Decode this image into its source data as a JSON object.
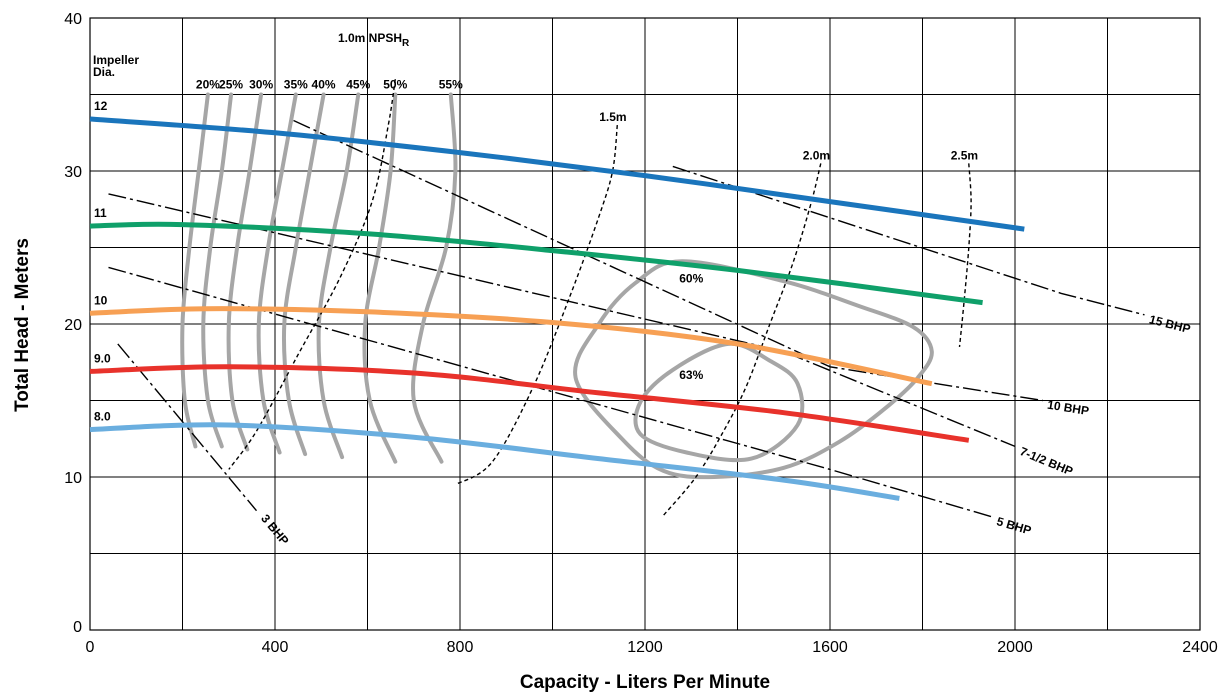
{
  "chart_data": {
    "type": "line",
    "title": "",
    "xlabel": "Capacity - Liters Per Minute",
    "ylabel": "Total Head - Meters",
    "xlim": [
      0,
      2400
    ],
    "ylim": [
      0,
      40
    ],
    "x_ticks": [
      "0",
      "400",
      "800",
      "1200",
      "1600",
      "2000",
      "2400"
    ],
    "y_ticks": [
      "0",
      "10",
      "20",
      "30",
      "40"
    ],
    "grid": true,
    "impeller_header": [
      "Impeller",
      "Dia."
    ],
    "series": [
      {
        "name": "12",
        "color": "#1a75bc",
        "points": [
          [
            0,
            33.4
          ],
          [
            400,
            32.5
          ],
          [
            800,
            31.2
          ],
          [
            1200,
            29.7
          ],
          [
            1600,
            28.0
          ],
          [
            2020,
            26.2
          ]
        ]
      },
      {
        "name": "11",
        "color": "#0fa06a",
        "points": [
          [
            0,
            26.4
          ],
          [
            200,
            26.5
          ],
          [
            600,
            25.9
          ],
          [
            1000,
            24.8
          ],
          [
            1400,
            23.5
          ],
          [
            1930,
            21.4
          ]
        ]
      },
      {
        "name": "10",
        "color": "#f7a054",
        "points": [
          [
            0,
            20.7
          ],
          [
            250,
            21.0
          ],
          [
            600,
            20.8
          ],
          [
            1000,
            20.1
          ],
          [
            1400,
            18.7
          ],
          [
            1820,
            16.1
          ]
        ]
      },
      {
        "name": "9.0",
        "color": "#e8322b",
        "points": [
          [
            0,
            16.9
          ],
          [
            300,
            17.2
          ],
          [
            700,
            16.8
          ],
          [
            1100,
            15.5
          ],
          [
            1500,
            14.2
          ],
          [
            1900,
            12.4
          ]
        ]
      },
      {
        "name": "8.0",
        "color": "#6aaedf",
        "points": [
          [
            0,
            13.1
          ],
          [
            300,
            13.4
          ],
          [
            700,
            12.6
          ],
          [
            1100,
            11.2
          ],
          [
            1500,
            9.8
          ],
          [
            1750,
            8.6
          ]
        ]
      }
    ],
    "efficiency_curves": [
      {
        "label": "20%",
        "points": [
          [
            255,
            35.0
          ],
          [
            235,
            30.0
          ],
          [
            215,
            25.0
          ],
          [
            200,
            20.0
          ],
          [
            205,
            15.0
          ],
          [
            228,
            12.0
          ]
        ]
      },
      {
        "label": "25%",
        "points": [
          [
            305,
            35.0
          ],
          [
            285,
            30.0
          ],
          [
            260,
            25.0
          ],
          [
            245,
            20.0
          ],
          [
            255,
            15.0
          ],
          [
            285,
            12.0
          ]
        ]
      },
      {
        "label": "30%",
        "points": [
          [
            370,
            35.0
          ],
          [
            345,
            30.0
          ],
          [
            318,
            25.0
          ],
          [
            300,
            20.0
          ],
          [
            308,
            15.0
          ],
          [
            340,
            11.8
          ]
        ]
      },
      {
        "label": "35%",
        "points": [
          [
            445,
            35.0
          ],
          [
            415,
            30.0
          ],
          [
            385,
            25.0
          ],
          [
            365,
            20.0
          ],
          [
            375,
            15.0
          ],
          [
            410,
            11.6
          ]
        ]
      },
      {
        "label": "40%",
        "points": [
          [
            505,
            35.0
          ],
          [
            475,
            30.0
          ],
          [
            445,
            25.0
          ],
          [
            420,
            20.0
          ],
          [
            430,
            15.0
          ],
          [
            465,
            11.5
          ]
        ]
      },
      {
        "label": "45%",
        "points": [
          [
            580,
            35.0
          ],
          [
            555,
            30.0
          ],
          [
            520,
            25.0
          ],
          [
            495,
            20.0
          ],
          [
            505,
            15.0
          ],
          [
            545,
            11.3
          ]
        ]
      },
      {
        "label": "50%",
        "points": [
          [
            660,
            35.0
          ],
          [
            650,
            30.0
          ],
          [
            625,
            25.0
          ],
          [
            595,
            20.0
          ],
          [
            605,
            15.0
          ],
          [
            660,
            11.0
          ]
        ]
      },
      {
        "label": "55%",
        "points": [
          [
            780,
            35.0
          ],
          [
            790,
            30.0
          ],
          [
            770,
            25.0
          ],
          [
            720,
            20.0
          ],
          [
            700,
            15.0
          ],
          [
            760,
            11.0
          ]
        ]
      }
    ],
    "iso_curves": [
      {
        "label": "60%",
        "points": [
          [
            1280,
            24.1
          ],
          [
            1500,
            22.8
          ],
          [
            1660,
            21.2
          ],
          [
            1780,
            19.8
          ],
          [
            1820,
            18.2
          ],
          [
            1790,
            16.5
          ],
          [
            1720,
            14.5
          ],
          [
            1620,
            12.3
          ],
          [
            1500,
            10.6
          ],
          [
            1350,
            10.0
          ],
          [
            1240,
            10.4
          ],
          [
            1150,
            12.5
          ],
          [
            1050,
            16.5
          ],
          [
            1100,
            20.0
          ],
          [
            1180,
            22.7
          ],
          [
            1280,
            24.1
          ]
        ]
      },
      {
        "label": "63%",
        "points": [
          [
            1380,
            18.7
          ],
          [
            1470,
            17.6
          ],
          [
            1530,
            16.1
          ],
          [
            1530,
            13.4
          ],
          [
            1430,
            11.2
          ],
          [
            1290,
            11.6
          ],
          [
            1190,
            12.8
          ],
          [
            1190,
            14.9
          ],
          [
            1260,
            17.0
          ],
          [
            1380,
            18.7
          ]
        ]
      }
    ],
    "npshr_label": "1.0m NPSH",
    "npshr_sub": "R",
    "npshr_curves": [
      {
        "label": "1.0m",
        "points": [
          [
            660,
            36.0
          ],
          [
            645,
            33.0
          ],
          [
            610,
            28.0
          ],
          [
            540,
            23.0
          ],
          [
            450,
            18.0
          ],
          [
            360,
            13.0
          ],
          [
            300,
            10.5
          ]
        ]
      },
      {
        "label": "1.5m",
        "points": [
          [
            1140,
            33.0
          ],
          [
            1130,
            30.0
          ],
          [
            1100,
            27.0
          ],
          [
            1040,
            22.0
          ],
          [
            960,
            16.0
          ],
          [
            870,
            11.0
          ],
          [
            790,
            9.5
          ]
        ]
      },
      {
        "label": "2.0m",
        "points": [
          [
            1580,
            30.5
          ],
          [
            1560,
            28.0
          ],
          [
            1520,
            24.0
          ],
          [
            1470,
            20.0
          ],
          [
            1420,
            16.0
          ],
          [
            1370,
            13.0
          ],
          [
            1310,
            10.0
          ],
          [
            1240,
            7.5
          ]
        ]
      },
      {
        "label": "2.5m",
        "points": [
          [
            1900,
            30.5
          ],
          [
            1905,
            28.0
          ],
          [
            1900,
            25.0
          ],
          [
            1890,
            21.5
          ],
          [
            1880,
            18.5
          ]
        ]
      }
    ],
    "bhp_lines": [
      {
        "label": "3 BHP",
        "points": [
          [
            60,
            18.7
          ],
          [
            360,
            7.8
          ]
        ]
      },
      {
        "label": "5 BHP",
        "points": [
          [
            40,
            23.7
          ],
          [
            1600,
            10.5
          ],
          [
            1950,
            7.4
          ]
        ]
      },
      {
        "label": "7-1/2 BHP",
        "points": [
          [
            40,
            28.5
          ],
          [
            1500,
            18.2
          ],
          [
            2000,
            12.0
          ]
        ]
      },
      {
        "label": "10 BHP",
        "points": [
          [
            440,
            33.3
          ],
          [
            1600,
            17.2
          ],
          [
            2060,
            15.0
          ]
        ]
      },
      {
        "label": "15 BHP",
        "points": [
          [
            1260,
            30.3
          ],
          [
            2100,
            22.0
          ],
          [
            2280,
            20.6
          ]
        ]
      }
    ]
  }
}
